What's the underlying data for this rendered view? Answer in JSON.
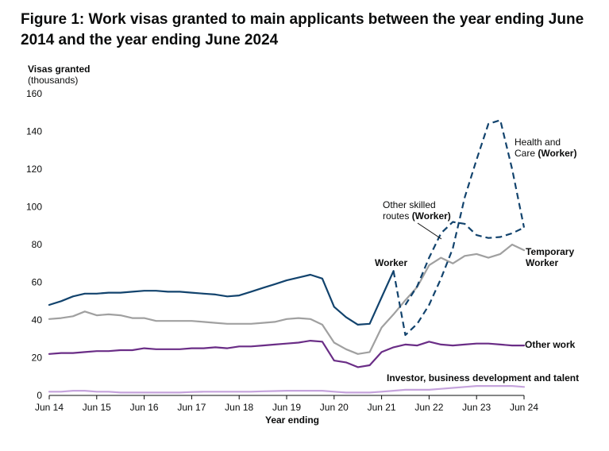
{
  "figure": {
    "title": "Figure 1: Work visas granted to main applicants between the year ending June 2014 and the year ending June 2024"
  },
  "chart_data": {
    "type": "line",
    "title": "Figure 1: Work visas granted to main applicants between the year ending June 2014 and the year ending June 2024",
    "ylabel": "Visas granted",
    "ylabel_sub": "(thousands)",
    "xlabel": "Year ending",
    "ylim": [
      0,
      160
    ],
    "yticks": [
      0,
      20,
      40,
      60,
      80,
      100,
      120,
      140,
      160
    ],
    "grid": false,
    "legend": "direct labels",
    "x_tick_labels": [
      "Jun 14",
      "Jun 15",
      "Jun 16",
      "Jun 17",
      "Jun 18",
      "Jun 19",
      "Jun 20",
      "Jun 21",
      "Jun 22",
      "Jun 23",
      "Jun 24"
    ],
    "x": [
      "Jun 14",
      "Sep 14",
      "Dec 14",
      "Mar 15",
      "Jun 15",
      "Sep 15",
      "Dec 15",
      "Mar 16",
      "Jun 16",
      "Sep 16",
      "Dec 16",
      "Mar 17",
      "Jun 17",
      "Sep 17",
      "Dec 17",
      "Mar 18",
      "Jun 18",
      "Sep 18",
      "Dec 18",
      "Mar 19",
      "Jun 19",
      "Sep 19",
      "Dec 19",
      "Mar 20",
      "Jun 20",
      "Sep 20",
      "Dec 20",
      "Mar 21",
      "Jun 21",
      "Sep 21",
      "Dec 21",
      "Mar 22",
      "Jun 22",
      "Sep 22",
      "Dec 22",
      "Mar 23",
      "Jun 23",
      "Sep 23",
      "Dec 23",
      "Mar 24",
      "Jun 24"
    ],
    "series": [
      {
        "name": "Worker",
        "color": "#12436d",
        "dash": false,
        "values": [
          48,
          50,
          52.5,
          54,
          54,
          54.5,
          54.5,
          55,
          55.5,
          55.5,
          55,
          55,
          54.5,
          54,
          53.5,
          52.5,
          53,
          55,
          57,
          59,
          61,
          62.5,
          64,
          62,
          47,
          41.5,
          37.5,
          38,
          52,
          66,
          null,
          null,
          null,
          null,
          null,
          null,
          null,
          null,
          null,
          null,
          null
        ]
      },
      {
        "name": "Temporary Worker",
        "color": "#a0a0a0",
        "dash": false,
        "values": [
          40.5,
          41,
          42,
          44.5,
          42.5,
          43,
          42.5,
          41,
          41,
          39.5,
          39.5,
          39.5,
          39.5,
          39,
          38.5,
          38,
          38,
          38,
          38.5,
          39,
          40.5,
          41,
          40.5,
          37.5,
          28,
          24.5,
          22,
          23,
          36,
          43,
          50.5,
          57.5,
          69,
          73,
          70,
          74,
          75,
          73,
          75,
          80,
          77
        ]
      },
      {
        "name": "Other work",
        "color": "#6a2d86",
        "dash": false,
        "values": [
          22,
          22.5,
          22.5,
          23,
          23.5,
          23.5,
          24,
          24,
          25,
          24.5,
          24.5,
          24.5,
          25,
          25,
          25.5,
          25,
          26,
          26,
          26.5,
          27,
          27.5,
          28,
          29,
          28.5,
          18.5,
          17.5,
          15,
          16,
          23,
          25.5,
          27,
          26.5,
          28.5,
          27,
          26.5,
          27,
          27.5,
          27.5,
          27,
          26.5,
          26.5
        ]
      },
      {
        "name": "Investor, business development and talent",
        "color": "#c5a3dc",
        "dash": false,
        "values": [
          2,
          2,
          2.5,
          2.5,
          2,
          2,
          1.5,
          1.5,
          1.5,
          1.5,
          1.5,
          1.5,
          1.8,
          2,
          2,
          2,
          2,
          2,
          2.2,
          2.3,
          2.5,
          2.5,
          2.5,
          2.5,
          2,
          1.5,
          1.5,
          1.5,
          2,
          2.5,
          3,
          3,
          3,
          3.5,
          4,
          4.5,
          5,
          5,
          5,
          5,
          4.5
        ]
      },
      {
        "name": "Health and Care (Worker)",
        "color": "#12436d",
        "dash": true,
        "values": [
          null,
          null,
          null,
          null,
          null,
          null,
          null,
          null,
          null,
          null,
          null,
          null,
          null,
          null,
          null,
          null,
          null,
          null,
          null,
          null,
          null,
          null,
          null,
          null,
          null,
          null,
          null,
          null,
          null,
          66,
          32,
          38,
          48,
          62,
          78,
          105,
          125,
          144,
          146,
          120,
          89
        ]
      },
      {
        "name": "Other skilled routes (Worker)",
        "color": "#12436d",
        "dash": true,
        "values": [
          null,
          null,
          null,
          null,
          null,
          null,
          null,
          null,
          null,
          null,
          null,
          null,
          null,
          null,
          null,
          null,
          null,
          null,
          null,
          null,
          null,
          null,
          null,
          null,
          null,
          null,
          null,
          null,
          null,
          null,
          48,
          58,
          73,
          86,
          92,
          91,
          85,
          83.5,
          84,
          86,
          89
        ]
      }
    ],
    "labels": {
      "worker": "Worker",
      "temporary_worker_line1": "Temporary",
      "temporary_worker_line2": "Worker",
      "other_work": "Other work",
      "investor": "Investor, business development and talent",
      "health_care_line1": "Health and",
      "health_care_line2_plain": "Care ",
      "health_care_line2_bold": "(Worker)",
      "other_skilled_line1": "Other skilled",
      "other_skilled_line2_plain": "routes ",
      "other_skilled_line2_bold": "(Worker)"
    }
  }
}
